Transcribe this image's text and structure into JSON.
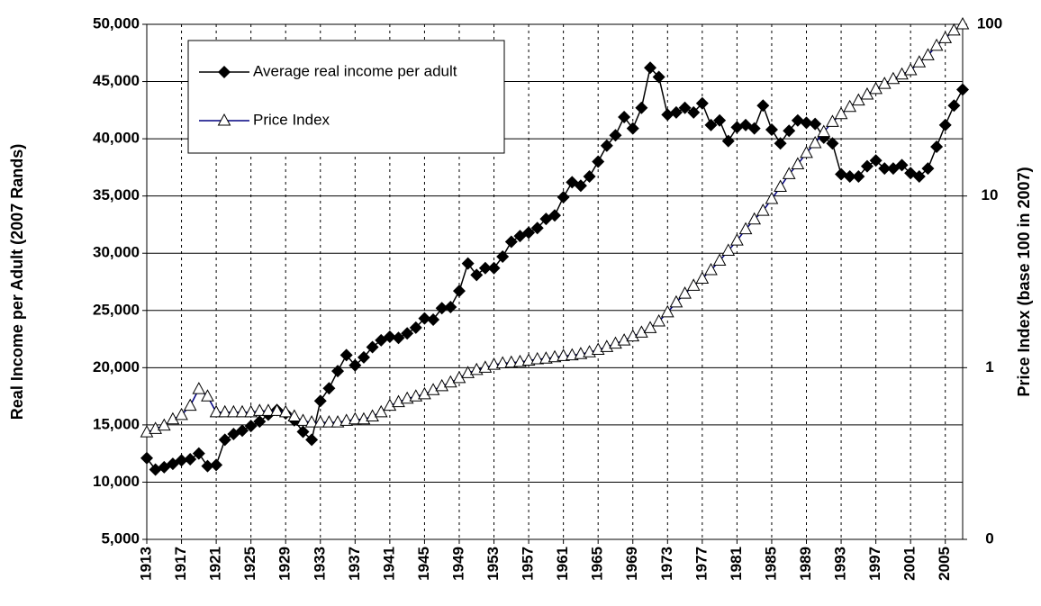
{
  "chart_data": {
    "type": "line",
    "y_label": "Real Income per Adult (2007 Rands)",
    "y2_label": "Price Index (base 100 in 2007)",
    "x": [
      1913,
      1914,
      1915,
      1916,
      1917,
      1918,
      1919,
      1920,
      1921,
      1922,
      1923,
      1924,
      1925,
      1926,
      1927,
      1928,
      1929,
      1930,
      1931,
      1932,
      1933,
      1934,
      1935,
      1936,
      1937,
      1938,
      1939,
      1940,
      1941,
      1942,
      1943,
      1944,
      1945,
      1946,
      1947,
      1948,
      1949,
      1950,
      1951,
      1952,
      1953,
      1954,
      1955,
      1956,
      1957,
      1958,
      1959,
      1960,
      1961,
      1962,
      1963,
      1964,
      1965,
      1966,
      1967,
      1968,
      1969,
      1970,
      1971,
      1972,
      1973,
      1974,
      1975,
      1976,
      1977,
      1978,
      1979,
      1980,
      1981,
      1982,
      1983,
      1984,
      1985,
      1986,
      1987,
      1988,
      1989,
      1990,
      1991,
      1992,
      1993,
      1994,
      1995,
      1996,
      1997,
      1998,
      1999,
      2000,
      2001,
      2002,
      2003,
      2004,
      2005,
      2006,
      2007
    ],
    "series": [
      {
        "name": "Average real income per adult",
        "color": "#000000",
        "marker": "diamond",
        "values": [
          12100,
          11100,
          11300,
          11600,
          11900,
          12000,
          12500,
          11400,
          11500,
          13700,
          14200,
          14500,
          14900,
          15300,
          15900,
          16300,
          16000,
          15400,
          14400,
          13700,
          17100,
          18200,
          19700,
          21100,
          20200,
          20900,
          21800,
          22400,
          22700,
          22600,
          23000,
          23500,
          24300,
          24200,
          25200,
          25300,
          26700,
          29100,
          28100,
          28700,
          28700,
          29700,
          31000,
          31500,
          31800,
          32200,
          33000,
          33300,
          34900,
          36200,
          35900,
          36700,
          38000,
          39400,
          40300,
          41900,
          40900,
          42700,
          46200,
          45400,
          42100,
          42300,
          42700,
          42300,
          43100,
          41200,
          41600,
          39800,
          41000,
          41200,
          40900,
          42900,
          40800,
          39600,
          40700,
          41600,
          41400,
          41300,
          40100,
          39600,
          36900,
          36700,
          36700,
          37600,
          38100,
          37400,
          37400,
          37700,
          37000,
          36700,
          37400,
          39300,
          41200,
          42900,
          44300
        ]
      },
      {
        "name": "Price Index",
        "color": "#000080",
        "marker": "triangle",
        "axis": "y2",
        "values": [
          0.42,
          0.44,
          0.46,
          0.5,
          0.53,
          0.6,
          0.75,
          0.68,
          0.55,
          0.55,
          0.55,
          0.55,
          0.55,
          0.56,
          0.56,
          0.56,
          0.55,
          0.52,
          0.49,
          0.48,
          0.48,
          0.48,
          0.48,
          0.49,
          0.5,
          0.5,
          0.52,
          0.55,
          0.6,
          0.63,
          0.66,
          0.68,
          0.7,
          0.74,
          0.78,
          0.82,
          0.87,
          0.93,
          0.97,
          1.0,
          1.04,
          1.06,
          1.07,
          1.08,
          1.1,
          1.12,
          1.13,
          1.15,
          1.17,
          1.18,
          1.2,
          1.23,
          1.27,
          1.32,
          1.38,
          1.44,
          1.52,
          1.6,
          1.7,
          1.86,
          2.1,
          2.4,
          2.7,
          3.0,
          3.3,
          3.7,
          4.2,
          4.8,
          5.5,
          6.4,
          7.3,
          8.2,
          9.6,
          11.3,
          13.4,
          15.3,
          17.8,
          20.3,
          23.6,
          27,
          30,
          33,
          36,
          39,
          42,
          45,
          48,
          51,
          54,
          60,
          66,
          75,
          83,
          92,
          100
        ]
      }
    ],
    "xlim": [
      1913,
      2007
    ],
    "xticks": [
      1913,
      1917,
      1921,
      1925,
      1929,
      1933,
      1937,
      1941,
      1945,
      1949,
      1953,
      1957,
      1961,
      1965,
      1969,
      1973,
      1977,
      1981,
      1985,
      1989,
      1993,
      1997,
      2001,
      2005
    ],
    "ylim": [
      5000,
      50000
    ],
    "yticks": [
      {
        "value": 5000,
        "label": "5,000"
      },
      {
        "value": 10000,
        "label": "10,000"
      },
      {
        "value": 15000,
        "label": "15,000"
      },
      {
        "value": 20000,
        "label": "20,000"
      },
      {
        "value": 25000,
        "label": "25,000"
      },
      {
        "value": 30000,
        "label": "30,000"
      },
      {
        "value": 35000,
        "label": "35,000"
      },
      {
        "value": 40000,
        "label": "40,000"
      },
      {
        "value": 45000,
        "label": "45,000"
      },
      {
        "value": 50000,
        "label": "50,000"
      }
    ],
    "y2lim": [
      0.1,
      100
    ],
    "y2ticks": [
      {
        "value": 0.1,
        "label": "0"
      },
      1,
      10,
      100
    ],
    "y2_scale": "log",
    "grid": true,
    "legend": "upper left"
  }
}
